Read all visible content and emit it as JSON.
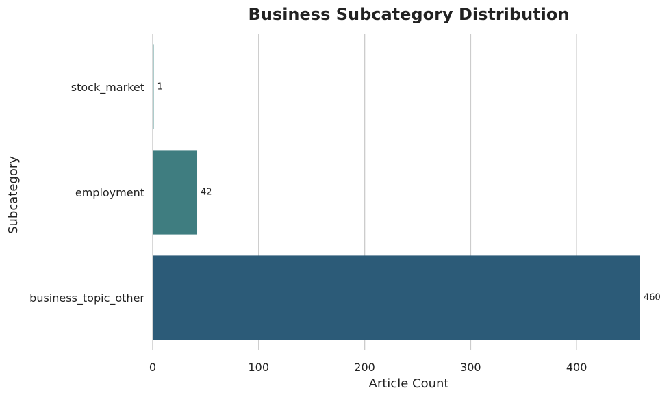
{
  "chart_data": {
    "type": "bar",
    "orientation": "horizontal",
    "title": "Business Subcategory Distribution",
    "xlabel": "Article Count",
    "ylabel": "Subcategory",
    "categories": [
      "stock_market",
      "employment",
      "business_topic_other"
    ],
    "values": [
      1,
      42,
      460
    ],
    "data_labels": [
      "1",
      "42",
      "460"
    ],
    "colors": [
      "#69a3a0",
      "#3f7d80",
      "#2c5b78"
    ],
    "xlim": [
      0,
      460
    ],
    "xticks": [
      0,
      100,
      200,
      300,
      400
    ],
    "xtick_labels": [
      "0",
      "100",
      "200",
      "300",
      "400"
    ],
    "grid": "x-major",
    "legend": "none"
  }
}
